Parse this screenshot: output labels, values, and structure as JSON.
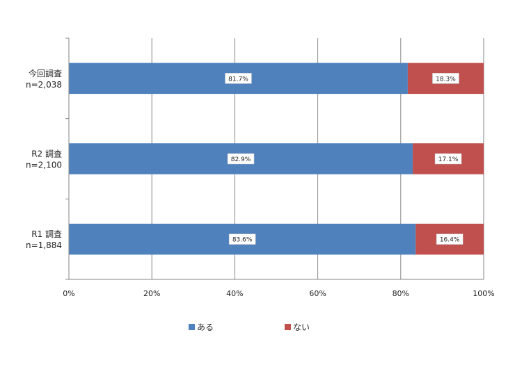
{
  "chart_data": {
    "type": "bar",
    "orientation": "horizontal",
    "stacked": "percent",
    "categories": [
      {
        "name": "今回調査",
        "n": "n=2,038"
      },
      {
        "name": "R2 調査",
        "n": "n=2,100"
      },
      {
        "name": "R1 調査",
        "n": "n=1,884"
      }
    ],
    "series": [
      {
        "name": "ある",
        "color": "#4f81bd",
        "values": [
          81.7,
          82.9,
          83.6
        ],
        "labels": [
          "81.7%",
          "82.9%",
          "83.6%"
        ]
      },
      {
        "name": "ない",
        "color": "#c0504d",
        "values": [
          18.3,
          17.1,
          16.4
        ],
        "labels": [
          "18.3%",
          "17.1%",
          "16.4%"
        ]
      }
    ],
    "xlim": [
      0,
      100
    ],
    "xticks": [
      "0%",
      "20%",
      "40%",
      "60%",
      "80%",
      "100%"
    ],
    "grid": true,
    "legend_position": "bottom"
  }
}
